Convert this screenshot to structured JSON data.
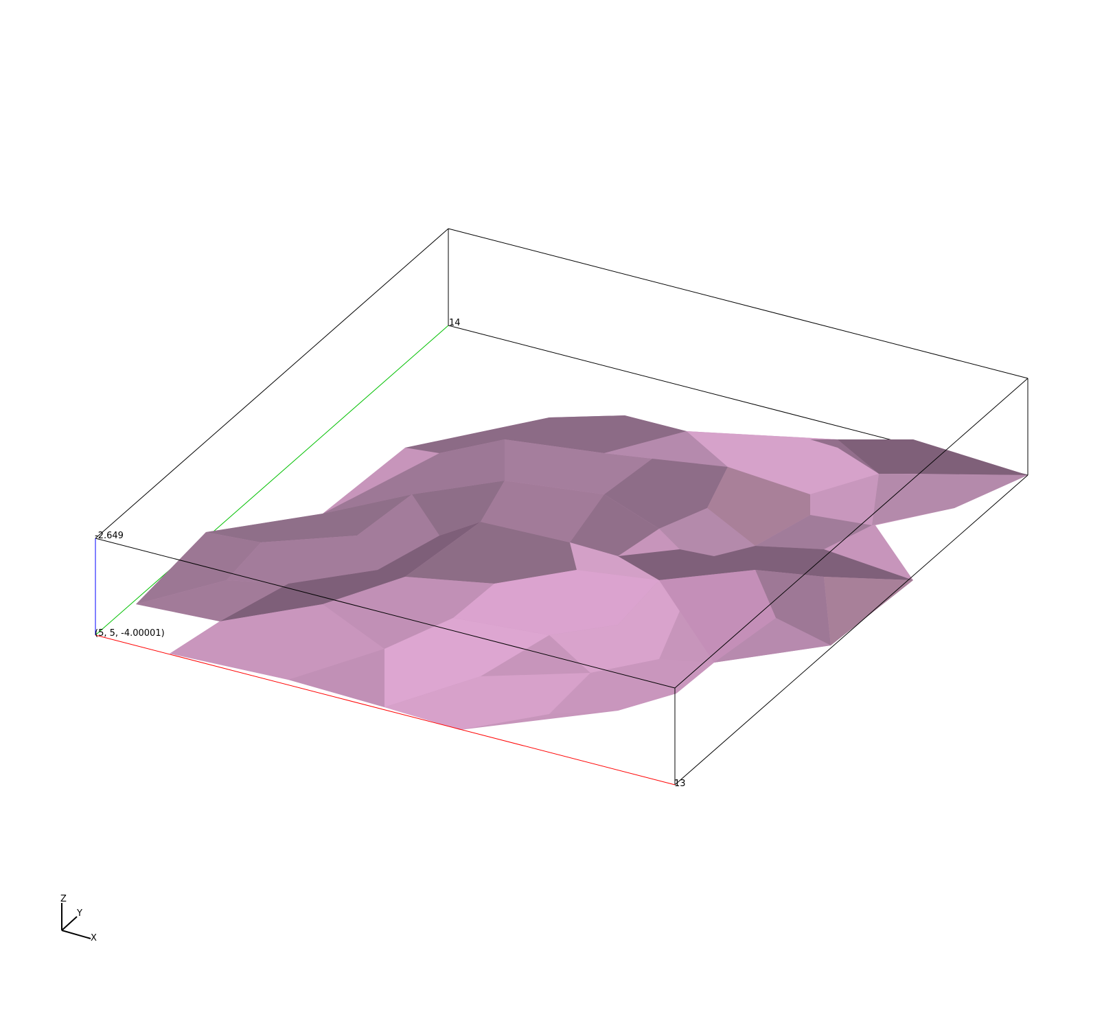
{
  "scene": {
    "bounds_labels": {
      "x_max": "13",
      "y_max": "14",
      "z_max": "-2.649",
      "origin": "(5, 5, -4.00001)"
    },
    "orientation_axes": {
      "x": "X",
      "y": "Y",
      "z": "Z"
    },
    "colors": {
      "background": "#ffffff",
      "bounding_box": "#000000",
      "x_axis": "#ff0000",
      "y_axis": "#00c000",
      "z_axis": "#0000ff",
      "surface_base": "#d9a3cc",
      "surface_mid": "#b889ad",
      "surface_dark": "#8a6a83"
    },
    "surface": "isosurface-triangulated"
  }
}
